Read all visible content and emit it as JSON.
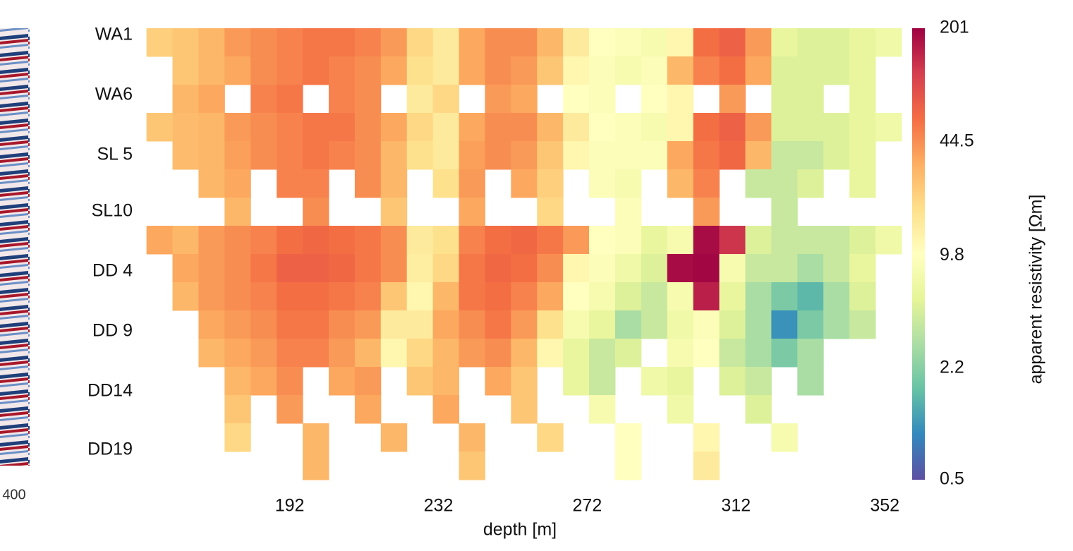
{
  "left_panel": {
    "tick_label": "400"
  },
  "chart_data": {
    "type": "heatmap",
    "xlabel": "depth [m]",
    "xlim": [
      153,
      355
    ],
    "xticks": [
      192,
      232,
      272,
      312,
      352
    ],
    "ylim": [
      0,
      16
    ],
    "y_inverted": true,
    "yticks": [
      {
        "value": 0.25,
        "label": "WA1"
      },
      {
        "value": 2.375,
        "label": "WA6"
      },
      {
        "value": 4.5,
        "label": "SL 5"
      },
      {
        "value": 6.5,
        "label": "SL10"
      },
      {
        "value": 8.625,
        "label": "DD 4"
      },
      {
        "value": 10.75,
        "label": "DD 9"
      },
      {
        "value": 12.875,
        "label": "DD14"
      },
      {
        "value": 14.95,
        "label": "DD19"
      }
    ],
    "x": [
      157,
      164,
      171,
      178,
      185,
      192,
      199,
      206,
      213,
      220,
      227,
      234,
      241,
      248,
      255,
      262,
      269,
      276,
      283,
      290,
      297,
      304,
      311,
      318,
      325,
      332,
      339,
      346,
      353
    ],
    "y": [
      0.5,
      1.5,
      2.5,
      3.5,
      4.5,
      5.5,
      6.5,
      7.5,
      8.5,
      9.5,
      10.5,
      11.5,
      12.5,
      13.5,
      14.5,
      15.5
    ],
    "values": [
      [
        22,
        25,
        30,
        40,
        45,
        50,
        55,
        55,
        50,
        40,
        20,
        15,
        35,
        45,
        45,
        30,
        15,
        10,
        9,
        8,
        12,
        60,
        70,
        40,
        6,
        5,
        5,
        6,
        7
      ],
      [
        null,
        25,
        30,
        35,
        45,
        50,
        55,
        50,
        45,
        35,
        18,
        15,
        35,
        45,
        40,
        25,
        12,
        9,
        8,
        9,
        30,
        50,
        60,
        35,
        5,
        5,
        5,
        6,
        null
      ],
      [
        null,
        30,
        35,
        null,
        50,
        55,
        null,
        50,
        45,
        null,
        15,
        20,
        null,
        40,
        35,
        null,
        10,
        9,
        null,
        10,
        12,
        null,
        40,
        null,
        5,
        5,
        null,
        6,
        null
      ],
      [
        25,
        28,
        30,
        40,
        45,
        50,
        55,
        55,
        45,
        35,
        20,
        15,
        35,
        45,
        45,
        30,
        15,
        10,
        9,
        8,
        12,
        60,
        70,
        40,
        5,
        5,
        5,
        6,
        7
      ],
      [
        null,
        28,
        30,
        38,
        45,
        50,
        55,
        50,
        45,
        30,
        18,
        15,
        38,
        45,
        40,
        25,
        12,
        9,
        9,
        9,
        35,
        55,
        65,
        30,
        4,
        4,
        5,
        6,
        null
      ],
      [
        null,
        null,
        30,
        35,
        null,
        50,
        50,
        null,
        45,
        30,
        null,
        18,
        40,
        null,
        35,
        22,
        null,
        9,
        8,
        null,
        30,
        50,
        null,
        4,
        4,
        5,
        null,
        6,
        null
      ],
      [
        null,
        null,
        null,
        30,
        null,
        null,
        45,
        null,
        null,
        25,
        null,
        null,
        35,
        null,
        null,
        20,
        null,
        null,
        9,
        null,
        null,
        40,
        null,
        null,
        4,
        null,
        null,
        null,
        null
      ],
      [
        35,
        30,
        40,
        45,
        50,
        60,
        65,
        60,
        55,
        45,
        15,
        18,
        50,
        60,
        65,
        55,
        40,
        10,
        9,
        6,
        8,
        180,
        120,
        5,
        4,
        4,
        4,
        5,
        7
      ],
      [
        null,
        35,
        40,
        45,
        55,
        70,
        70,
        65,
        55,
        45,
        14,
        20,
        55,
        65,
        60,
        45,
        12,
        9,
        7,
        5,
        180,
        190,
        8,
        4,
        4,
        3,
        4,
        6,
        null
      ],
      [
        null,
        30,
        40,
        45,
        50,
        60,
        60,
        55,
        50,
        25,
        12,
        30,
        55,
        60,
        50,
        35,
        10,
        8,
        5,
        4,
        8,
        150,
        6,
        3,
        2,
        1.5,
        3,
        5,
        null
      ],
      [
        null,
        null,
        35,
        40,
        45,
        55,
        55,
        45,
        40,
        15,
        15,
        35,
        45,
        55,
        40,
        18,
        8,
        6,
        3,
        4,
        7,
        9,
        5,
        3,
        1,
        2,
        3,
        4,
        null
      ],
      [
        null,
        null,
        30,
        35,
        40,
        50,
        50,
        40,
        30,
        12,
        20,
        30,
        40,
        45,
        30,
        12,
        6,
        4,
        5,
        null,
        8,
        10,
        4,
        3,
        2,
        3,
        null,
        null,
        null
      ],
      [
        null,
        null,
        null,
        30,
        35,
        45,
        null,
        35,
        40,
        null,
        25,
        30,
        null,
        35,
        25,
        null,
        6,
        4,
        null,
        7,
        6,
        null,
        5,
        4,
        null,
        3,
        null,
        null,
        null
      ],
      [
        null,
        null,
        null,
        25,
        null,
        40,
        null,
        null,
        35,
        null,
        null,
        35,
        null,
        null,
        25,
        null,
        null,
        8,
        null,
        null,
        7,
        null,
        null,
        5,
        null,
        null,
        null,
        null,
        null
      ],
      [
        null,
        null,
        null,
        20,
        null,
        null,
        30,
        null,
        null,
        30,
        null,
        null,
        30,
        null,
        null,
        20,
        null,
        null,
        10,
        null,
        null,
        12,
        null,
        null,
        8,
        null,
        null,
        null,
        null
      ],
      [
        null,
        null,
        null,
        null,
        null,
        null,
        30,
        null,
        null,
        null,
        null,
        null,
        25,
        null,
        null,
        null,
        null,
        null,
        10,
        null,
        null,
        15,
        null,
        null,
        null,
        null,
        null,
        null,
        null
      ]
    ],
    "colorbar": {
      "label": "apparent resistivity [Ωm]",
      "scale": "log",
      "lim": [
        0.5,
        201
      ],
      "ticks": [
        201,
        44.5,
        9.8,
        2.2,
        0.5
      ],
      "colors": [
        "#5e4fa2",
        "#3288bd",
        "#66c2a5",
        "#abdda4",
        "#e6f598",
        "#ffffbf",
        "#fee08b",
        "#fdae61",
        "#f46d43",
        "#d53e4f",
        "#9e0142"
      ]
    }
  }
}
